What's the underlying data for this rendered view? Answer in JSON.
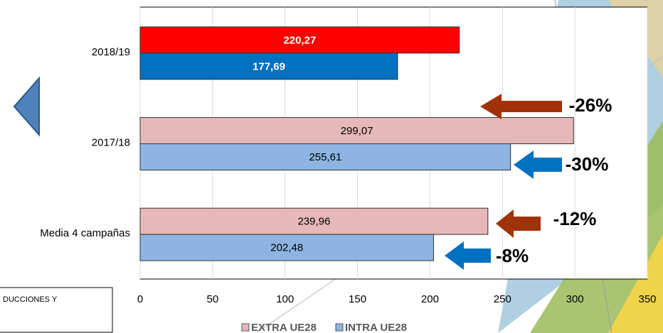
{
  "chart_data": {
    "type": "hbar",
    "categories": [
      "2018/19",
      "2017/18",
      "Media 4 campañas"
    ],
    "series": [
      {
        "name": "EXTRA UE28",
        "color": "#e6b8b7",
        "colors": [
          "#ff0000",
          "#e6b8b7",
          "#e6b8b7"
        ],
        "values": [
          220.27,
          299.07,
          239.96
        ],
        "value_labels": [
          "220,27",
          "299,07",
          "239,96"
        ]
      },
      {
        "name": "INTRA UE28",
        "color": "#8db4e2",
        "colors": [
          "#0070c0",
          "#8db4e2",
          "#8db4e2"
        ],
        "values": [
          177.69,
          255.61,
          202.48
        ],
        "value_labels": [
          "177,69",
          "255,61",
          "202,48"
        ]
      }
    ],
    "xlim": [
      0,
      350
    ],
    "xticks": [
      0,
      50,
      100,
      150,
      200,
      250,
      300,
      350
    ],
    "grid": true,
    "annotations": [
      "-26%",
      "-30%",
      "-12%",
      "-8%"
    ],
    "side_note": "DUCCIONES Y"
  }
}
